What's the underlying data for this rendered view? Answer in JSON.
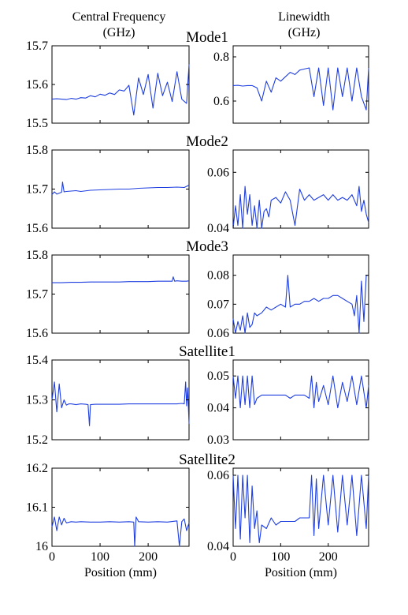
{
  "figure": {
    "col_headers": [
      [
        "Central Frequency",
        "(GHz)"
      ],
      [
        "Linewidth",
        "(GHz)"
      ]
    ],
    "xlabel": "Position (mm)",
    "line_color": "#1f3fe0"
  },
  "chart_data": [
    {
      "type": "line",
      "row": 0,
      "col": 0,
      "title": "Mode1",
      "ylim": [
        15.5,
        15.7
      ],
      "yticks": [
        "15.5",
        "15.6",
        "15.7"
      ],
      "xlim": [
        0,
        285
      ],
      "xticks": [],
      "x": [
        0,
        10,
        20,
        30,
        40,
        50,
        60,
        70,
        80,
        90,
        100,
        110,
        120,
        130,
        140,
        150,
        160,
        170,
        180,
        190,
        200,
        210,
        220,
        230,
        240,
        250,
        260,
        270,
        280,
        285
      ],
      "y": [
        15.562,
        15.563,
        15.562,
        15.561,
        15.564,
        15.562,
        15.566,
        15.565,
        15.571,
        15.568,
        15.575,
        15.572,
        15.578,
        15.574,
        15.586,
        15.583,
        15.598,
        15.521,
        15.617,
        15.574,
        15.626,
        15.539,
        15.629,
        15.571,
        15.606,
        15.556,
        15.633,
        15.562,
        15.551,
        15.652
      ]
    },
    {
      "type": "line",
      "row": 0,
      "col": 1,
      "title": "",
      "ylim": [
        0.5,
        0.85
      ],
      "yticks": [
        "0.6",
        "0.8"
      ],
      "xlim": [
        0,
        285
      ],
      "xticks": [],
      "x": [
        0,
        10,
        20,
        30,
        40,
        50,
        60,
        70,
        80,
        90,
        100,
        110,
        120,
        130,
        140,
        150,
        160,
        170,
        180,
        190,
        200,
        210,
        220,
        230,
        240,
        250,
        260,
        270,
        280,
        285
      ],
      "y": [
        0.67,
        0.671,
        0.668,
        0.67,
        0.67,
        0.66,
        0.6,
        0.69,
        0.64,
        0.705,
        0.69,
        0.71,
        0.73,
        0.72,
        0.74,
        0.745,
        0.75,
        0.62,
        0.75,
        0.58,
        0.75,
        0.56,
        0.75,
        0.62,
        0.75,
        0.6,
        0.75,
        0.62,
        0.56,
        0.75
      ]
    },
    {
      "type": "line",
      "row": 1,
      "col": 0,
      "title": "Mode2",
      "ylim": [
        15.6,
        15.8
      ],
      "yticks": [
        "15.6",
        "15.7",
        "15.8"
      ],
      "xlim": [
        0,
        285
      ],
      "xticks": [],
      "x": [
        0,
        5,
        10,
        20,
        22,
        25,
        30,
        40,
        50,
        60,
        80,
        100,
        120,
        140,
        160,
        180,
        200,
        220,
        240,
        260,
        275,
        285
      ],
      "y": [
        15.686,
        15.693,
        15.687,
        15.692,
        15.718,
        15.693,
        15.694,
        15.695,
        15.696,
        15.694,
        15.697,
        15.698,
        15.699,
        15.7,
        15.7,
        15.702,
        15.703,
        15.704,
        15.704,
        15.705,
        15.704,
        15.71
      ]
    },
    {
      "type": "line",
      "row": 1,
      "col": 1,
      "title": "",
      "ylim": [
        0.04,
        0.068
      ],
      "yticks": [
        "0.04",
        "0.06"
      ],
      "xlim": [
        0,
        285
      ],
      "xticks": [],
      "x": [
        0,
        5,
        10,
        15,
        20,
        25,
        30,
        35,
        40,
        45,
        50,
        55,
        60,
        65,
        70,
        75,
        80,
        90,
        100,
        110,
        120,
        130,
        140,
        150,
        160,
        170,
        180,
        190,
        200,
        210,
        220,
        230,
        240,
        250,
        260,
        265,
        270,
        275,
        280,
        285
      ],
      "y": [
        0.04,
        0.048,
        0.041,
        0.052,
        0.04,
        0.055,
        0.045,
        0.052,
        0.041,
        0.048,
        0.04,
        0.05,
        0.04,
        0.046,
        0.047,
        0.044,
        0.05,
        0.051,
        0.049,
        0.053,
        0.05,
        0.041,
        0.054,
        0.05,
        0.052,
        0.05,
        0.051,
        0.052,
        0.05,
        0.052,
        0.05,
        0.051,
        0.05,
        0.052,
        0.048,
        0.055,
        0.046,
        0.05,
        0.045,
        0.042
      ]
    },
    {
      "type": "line",
      "row": 2,
      "col": 0,
      "title": "Mode3",
      "ylim": [
        15.6,
        15.8
      ],
      "yticks": [
        "15.6",
        "15.7",
        "15.8"
      ],
      "xlim": [
        0,
        285
      ],
      "xticks": [],
      "x": [
        0,
        20,
        40,
        60,
        80,
        100,
        120,
        140,
        160,
        180,
        200,
        220,
        240,
        250,
        252,
        255,
        260,
        270,
        280,
        285
      ],
      "y": [
        15.729,
        15.729,
        15.73,
        15.73,
        15.731,
        15.731,
        15.731,
        15.731,
        15.732,
        15.732,
        15.732,
        15.733,
        15.733,
        15.733,
        15.744,
        15.733,
        15.734,
        15.733,
        15.733,
        15.734
      ]
    },
    {
      "type": "line",
      "row": 2,
      "col": 1,
      "title": "",
      "ylim": [
        0.06,
        0.087
      ],
      "yticks": [
        "0.06",
        "0.07",
        "0.08"
      ],
      "xlim": [
        0,
        285
      ],
      "xticks": [],
      "x": [
        0,
        5,
        10,
        15,
        20,
        25,
        30,
        35,
        40,
        45,
        50,
        60,
        70,
        80,
        90,
        100,
        110,
        115,
        120,
        130,
        140,
        150,
        160,
        170,
        180,
        190,
        200,
        210,
        220,
        230,
        240,
        250,
        255,
        260,
        265,
        270,
        275,
        280,
        285
      ],
      "y": [
        0.065,
        0.06,
        0.064,
        0.061,
        0.066,
        0.06,
        0.067,
        0.062,
        0.063,
        0.067,
        0.066,
        0.067,
        0.069,
        0.068,
        0.069,
        0.07,
        0.069,
        0.08,
        0.069,
        0.07,
        0.07,
        0.071,
        0.071,
        0.072,
        0.071,
        0.072,
        0.072,
        0.073,
        0.073,
        0.072,
        0.071,
        0.07,
        0.066,
        0.073,
        0.06,
        0.078,
        0.064,
        0.08,
        0.08
      ]
    },
    {
      "type": "line",
      "row": 3,
      "col": 0,
      "title": "Satellite1",
      "ylim": [
        15.2,
        15.4
      ],
      "yticks": [
        "15.2",
        "15.3",
        "15.4"
      ],
      "xlim": [
        0,
        285
      ],
      "xticks": [],
      "x": [
        0,
        5,
        10,
        15,
        20,
        25,
        30,
        35,
        40,
        50,
        60,
        70,
        75,
        78,
        80,
        90,
        100,
        120,
        140,
        160,
        180,
        200,
        220,
        240,
        260,
        270,
        275,
        278,
        280,
        282,
        285
      ],
      "y": [
        15.3,
        15.345,
        15.27,
        15.34,
        15.28,
        15.3,
        15.287,
        15.29,
        15.29,
        15.288,
        15.29,
        15.289,
        15.288,
        15.235,
        15.288,
        15.289,
        15.289,
        15.289,
        15.289,
        15.29,
        15.29,
        15.29,
        15.29,
        15.29,
        15.29,
        15.291,
        15.29,
        15.345,
        15.285,
        15.33,
        15.24
      ]
    },
    {
      "type": "line",
      "row": 3,
      "col": 1,
      "title": "",
      "ylim": [
        0.03,
        0.055
      ],
      "yticks": [
        "0.03",
        "0.04",
        "0.05"
      ],
      "xlim": [
        0,
        285
      ],
      "xticks": [],
      "x": [
        0,
        5,
        10,
        15,
        20,
        25,
        30,
        35,
        40,
        45,
        50,
        60,
        70,
        80,
        90,
        100,
        110,
        120,
        130,
        140,
        150,
        160,
        165,
        170,
        175,
        180,
        190,
        200,
        210,
        220,
        230,
        240,
        250,
        260,
        270,
        280,
        285
      ],
      "y": [
        0.05,
        0.043,
        0.05,
        0.04,
        0.05,
        0.041,
        0.05,
        0.04,
        0.05,
        0.041,
        0.043,
        0.044,
        0.044,
        0.044,
        0.044,
        0.044,
        0.044,
        0.043,
        0.044,
        0.044,
        0.044,
        0.043,
        0.05,
        0.04,
        0.048,
        0.042,
        0.047,
        0.041,
        0.05,
        0.04,
        0.048,
        0.042,
        0.05,
        0.041,
        0.05,
        0.04,
        0.047
      ]
    },
    {
      "type": "line",
      "row": 4,
      "col": 0,
      "title": "Satellite2",
      "ylim": [
        16.0,
        16.2
      ],
      "yticks": [
        "16",
        "16.1",
        "16.2"
      ],
      "xlim": [
        0,
        285
      ],
      "xticks": [
        "0",
        "100",
        "200"
      ],
      "xlabel": "Position (mm)",
      "x": [
        0,
        5,
        10,
        15,
        20,
        25,
        30,
        40,
        50,
        60,
        80,
        100,
        120,
        140,
        160,
        170,
        172,
        175,
        180,
        200,
        220,
        240,
        260,
        265,
        270,
        275,
        280,
        285
      ],
      "y": [
        16.05,
        16.075,
        16.04,
        16.075,
        16.055,
        16.072,
        16.06,
        16.063,
        16.062,
        16.063,
        16.062,
        16.062,
        16.063,
        16.062,
        16.063,
        16.062,
        16.0,
        16.075,
        16.063,
        16.062,
        16.063,
        16.062,
        16.065,
        16.0,
        16.063,
        16.07,
        16.04,
        16.06
      ]
    },
    {
      "type": "line",
      "row": 4,
      "col": 1,
      "title": "",
      "ylim": [
        0.04,
        0.062
      ],
      "yticks": [
        "0.04",
        "0.06"
      ],
      "xlim": [
        0,
        285
      ],
      "xticks": [
        "0",
        "100",
        "200"
      ],
      "xlabel": "Position (mm)",
      "x": [
        0,
        5,
        10,
        15,
        20,
        25,
        30,
        35,
        40,
        45,
        50,
        55,
        60,
        70,
        80,
        90,
        100,
        110,
        120,
        130,
        140,
        150,
        160,
        165,
        170,
        175,
        180,
        190,
        200,
        210,
        220,
        230,
        240,
        250,
        260,
        270,
        280,
        285
      ],
      "y": [
        0.06,
        0.045,
        0.06,
        0.042,
        0.06,
        0.048,
        0.06,
        0.041,
        0.057,
        0.045,
        0.05,
        0.041,
        0.046,
        0.045,
        0.048,
        0.046,
        0.047,
        0.047,
        0.047,
        0.047,
        0.048,
        0.048,
        0.048,
        0.06,
        0.043,
        0.059,
        0.045,
        0.06,
        0.046,
        0.06,
        0.044,
        0.06,
        0.046,
        0.06,
        0.043,
        0.06,
        0.045,
        0.06
      ]
    }
  ]
}
